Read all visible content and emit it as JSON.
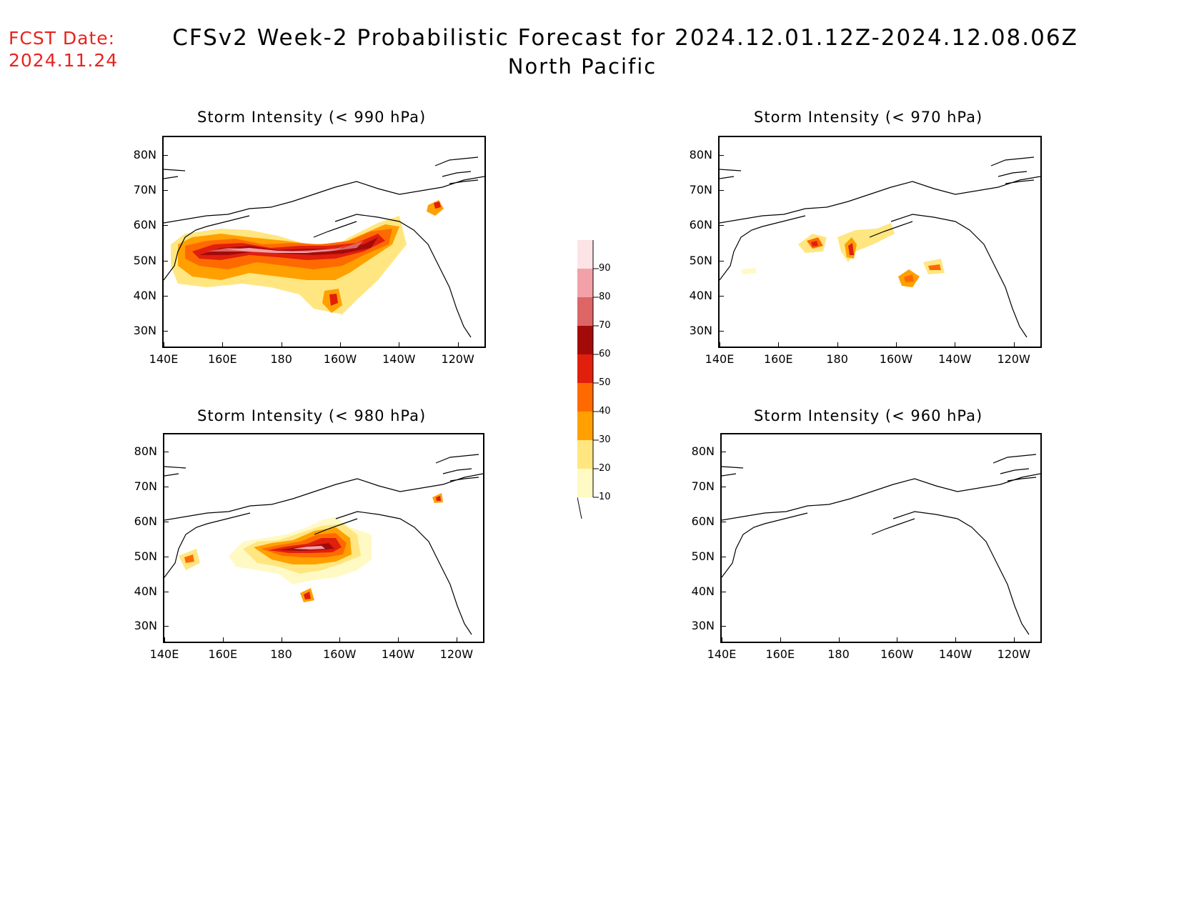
{
  "header": {
    "fcst_line1": "FCST Date:",
    "fcst_line2": "2024.11.24",
    "title": "CFSv2 Week-2 Probabilistic Forecast for 2024.12.01.12Z-2024.12.08.06Z",
    "subtitle": "North Pacific"
  },
  "axes": {
    "x_ticks": [
      "140E",
      "160E",
      "180",
      "160W",
      "140W",
      "120W"
    ],
    "y_ticks": [
      "80N",
      "70N",
      "60N",
      "50N",
      "40N",
      "30N"
    ]
  },
  "panels": [
    {
      "id": "p990",
      "title": "Storm Intensity (< 990 hPa)"
    },
    {
      "id": "p970",
      "title": "Storm Intensity (< 970 hPa)"
    },
    {
      "id": "p980",
      "title": "Storm Intensity (< 980 hPa)"
    },
    {
      "id": "p960",
      "title": "Storm Intensity (< 960 hPa)"
    }
  ],
  "colorbar": {
    "labels": [
      "90",
      "80",
      "70",
      "60",
      "50",
      "40",
      "30",
      "20",
      "10"
    ],
    "colors": [
      "#fce4e6",
      "#f2a1a8",
      "#dd6566",
      "#a30b0b",
      "#e01f0d",
      "#ff6a00",
      "#ffa000",
      "#ffe680",
      "#fff9c4"
    ]
  },
  "colors": {
    "title_red": "#e8231f",
    "land_outline": "#000000"
  }
}
